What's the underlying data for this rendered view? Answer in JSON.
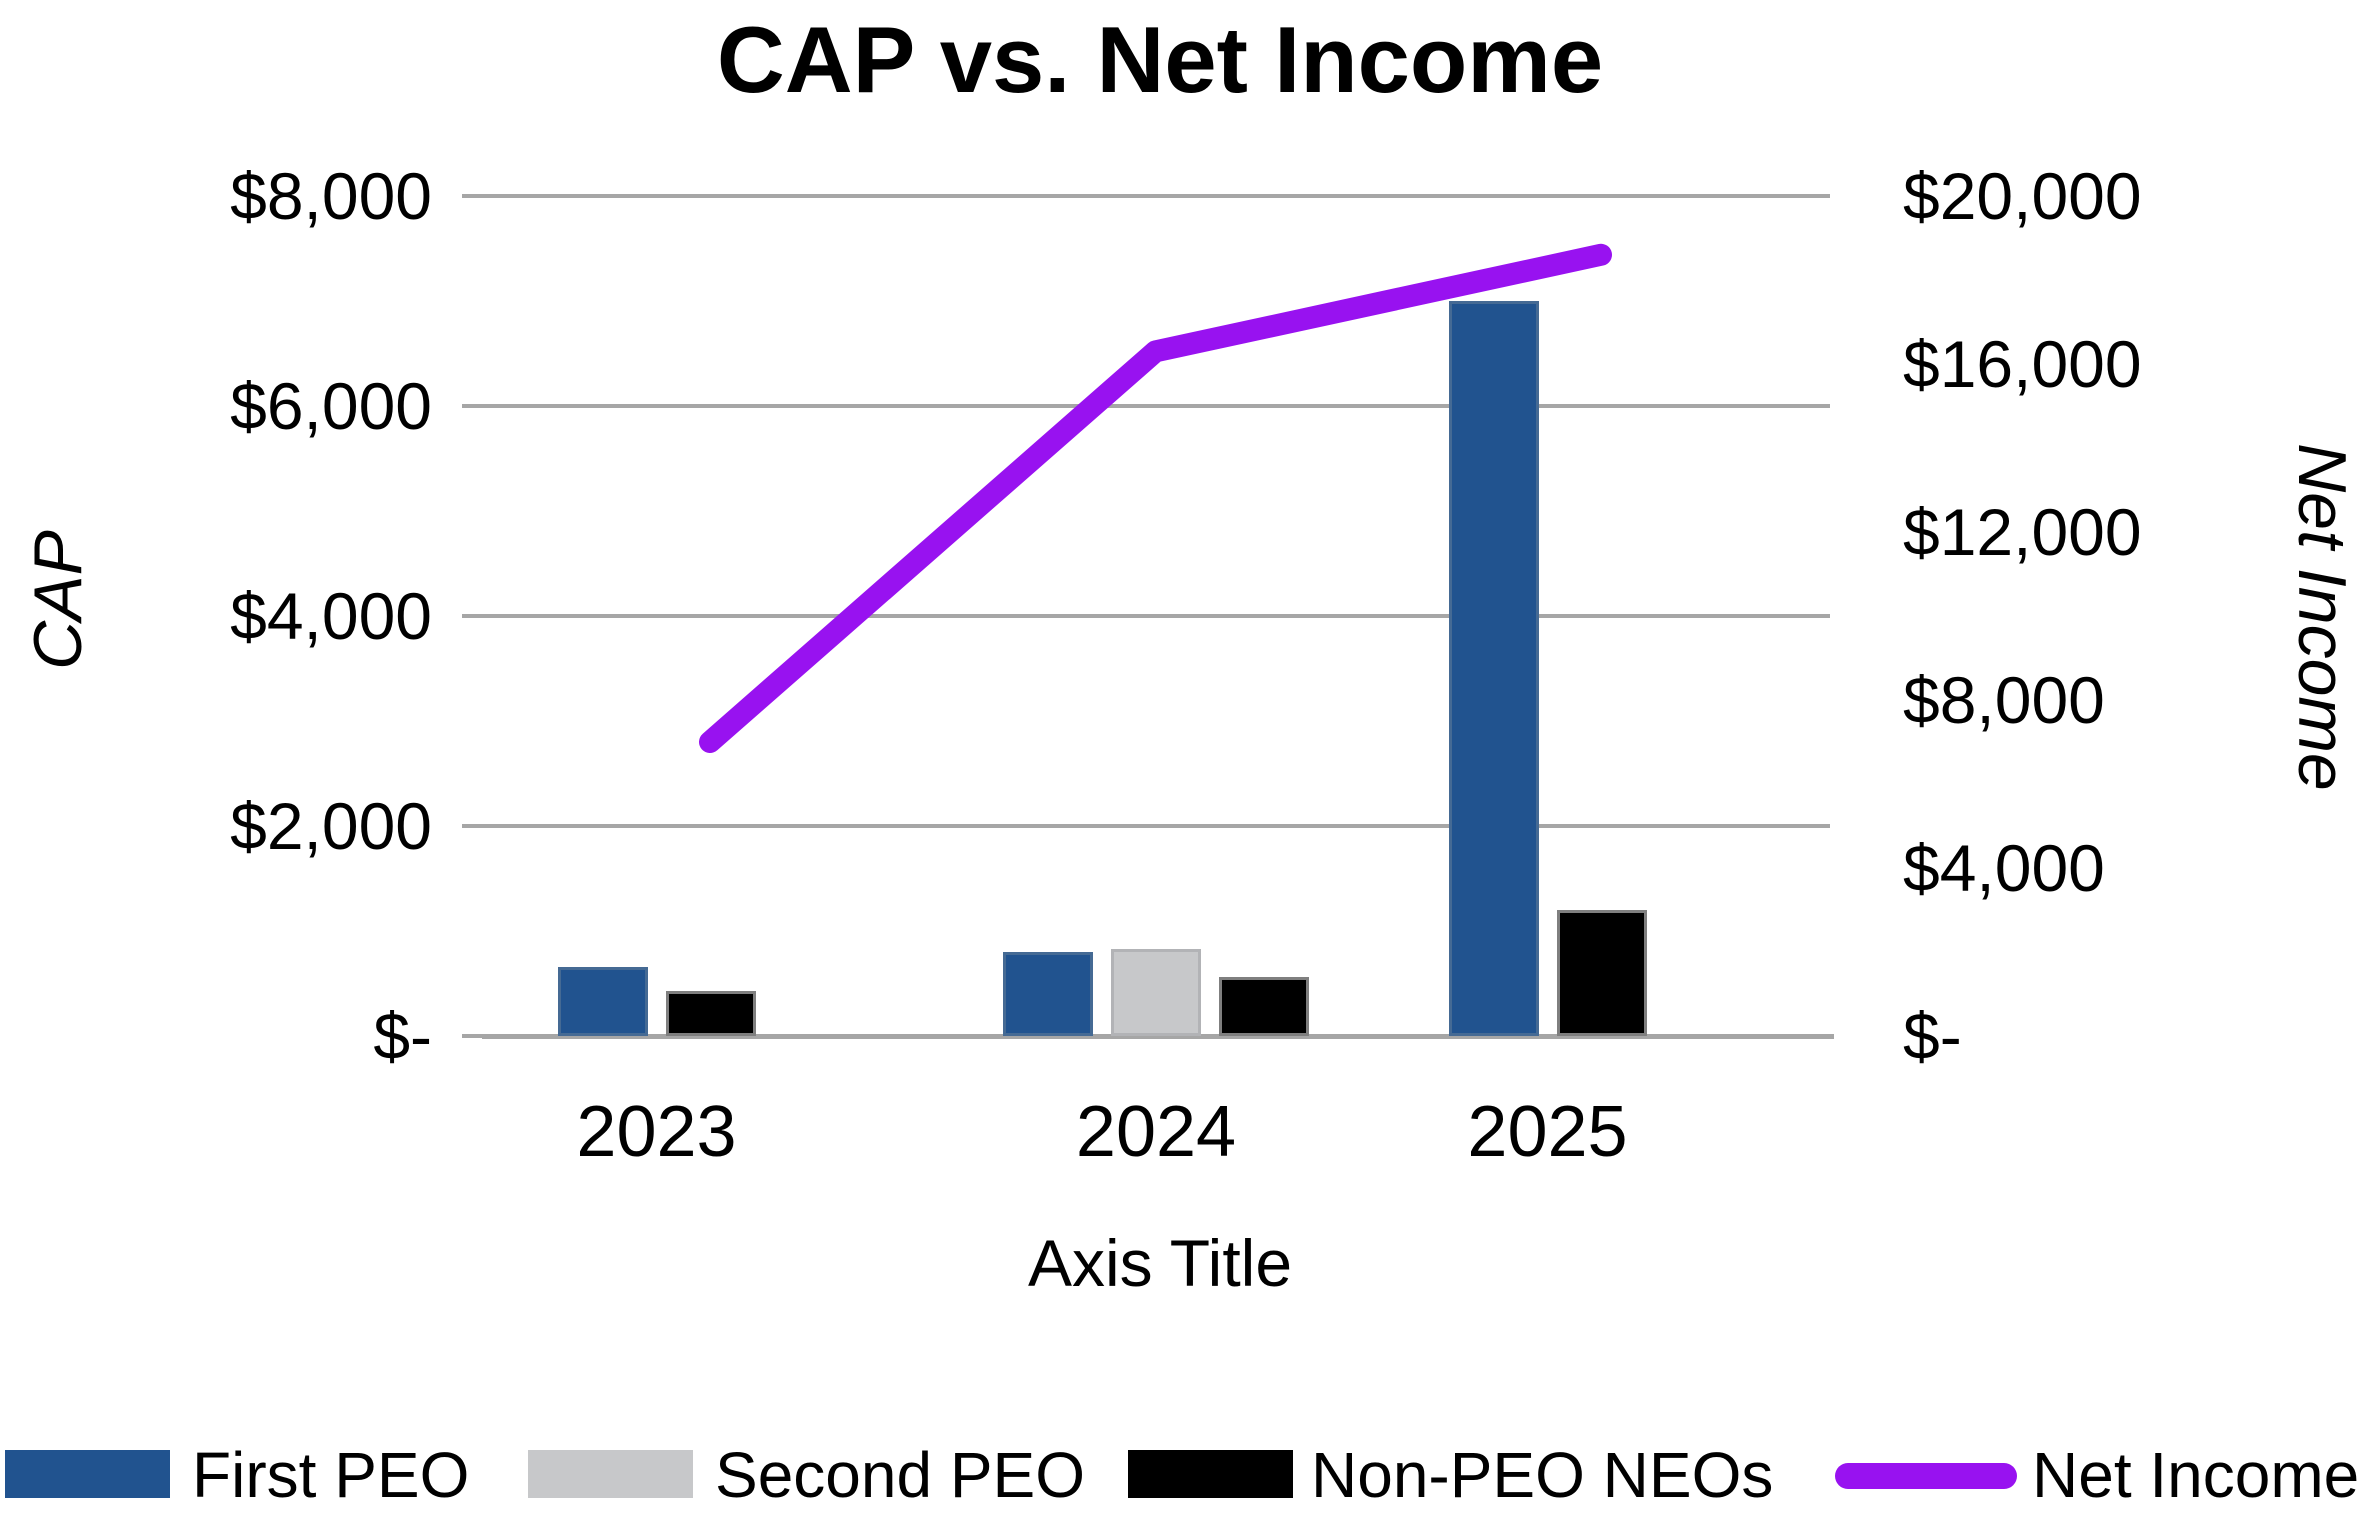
{
  "chart_data": {
    "type": "combo-bar-line",
    "title": "CAP vs. Net Income",
    "categories": [
      "2023",
      "2024",
      "2025"
    ],
    "series": [
      {
        "name": "First PEO",
        "type": "bar",
        "axis": "left",
        "color": "#21538F",
        "values": [
          660,
          800,
          7000
        ]
      },
      {
        "name": "Second PEO",
        "type": "bar",
        "axis": "left",
        "color": "#C7C8CA",
        "values": [
          null,
          830,
          null
        ]
      },
      {
        "name": "Non-PEO NEOs",
        "type": "bar",
        "axis": "left",
        "color": "#000000",
        "values": [
          430,
          560,
          1200
        ]
      },
      {
        "name": "Net Income",
        "type": "line",
        "axis": "right",
        "color": "#9812F0",
        "values": [
          7000,
          16300,
          18600
        ]
      }
    ],
    "x_axis": {
      "title": "Axis Title",
      "labels": [
        "2023",
        "2024",
        "2025"
      ]
    },
    "left_axis": {
      "title": "CAP",
      "min": 0,
      "max": 8000,
      "tick_labels": [
        "$-",
        "$2,000",
        "$4,000",
        "$6,000",
        "$8,000"
      ]
    },
    "right_axis": {
      "title": "Net Income",
      "min": 0,
      "max": 20000,
      "tick_labels": [
        "$-",
        "$4,000",
        "$8,000",
        "$12,000",
        "$16,000",
        "$20,000"
      ]
    },
    "legend": {
      "position": "bottom",
      "entries": [
        {
          "label": "First PEO",
          "marker": "rect",
          "color": "#21538F"
        },
        {
          "label": "Second PEO",
          "marker": "rect",
          "color": "#C7C8CA"
        },
        {
          "label": "Non-PEO NEOs",
          "marker": "rect",
          "color": "#000000"
        },
        {
          "label": "Net Income",
          "marker": "line",
          "color": "#9812F0"
        }
      ]
    },
    "grid": true,
    "gridline_color": "#A6A6A6"
  }
}
